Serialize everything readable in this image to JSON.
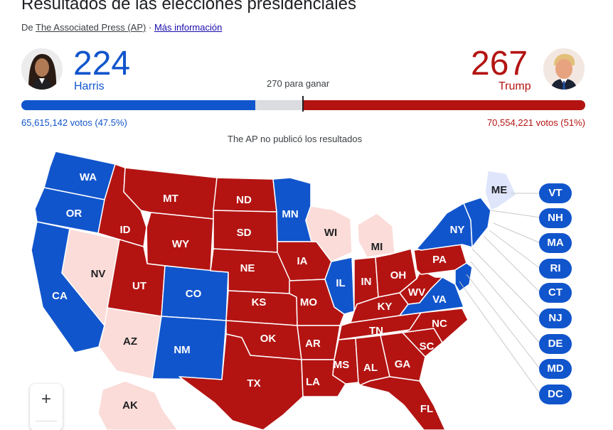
{
  "header": {
    "title": "Resultados de las elecciones presidenciales",
    "source_prefix": "De",
    "source_link": "The Associated Press (AP)",
    "separator": "·",
    "more_link": "Más información"
  },
  "candidates": {
    "harris": {
      "name": "Harris",
      "electoral_votes": "224",
      "popular_votes": "65,615,142 votos (47.5%)",
      "color": "#1155cc",
      "avatar_icon": "harris-portrait"
    },
    "trump": {
      "name": "Trump",
      "electoral_votes": "267",
      "popular_votes": "70,554,221 votos (51%)",
      "color": "#b31412",
      "avatar_icon": "trump-portrait"
    }
  },
  "to_win": "270 para ganar",
  "note": "The AP no publicó los resultados",
  "colors": {
    "dem": "#1155cc",
    "rep": "#b31412",
    "lean_dem": "#dfe6fb",
    "lean_rep": "#fbdcd8"
  },
  "map": {
    "states": [
      {
        "code": "WA",
        "status": "dem"
      },
      {
        "code": "OR",
        "status": "dem"
      },
      {
        "code": "CA",
        "status": "dem"
      },
      {
        "code": "NV",
        "status": "lean_rep"
      },
      {
        "code": "AZ",
        "status": "lean_rep"
      },
      {
        "code": "ID",
        "status": "rep"
      },
      {
        "code": "MT",
        "status": "rep"
      },
      {
        "code": "WY",
        "status": "rep"
      },
      {
        "code": "UT",
        "status": "rep"
      },
      {
        "code": "CO",
        "status": "dem"
      },
      {
        "code": "NM",
        "status": "dem"
      },
      {
        "code": "ND",
        "status": "rep"
      },
      {
        "code": "SD",
        "status": "rep"
      },
      {
        "code": "NE",
        "status": "rep"
      },
      {
        "code": "KS",
        "status": "rep"
      },
      {
        "code": "OK",
        "status": "rep"
      },
      {
        "code": "TX",
        "status": "rep"
      },
      {
        "code": "MN",
        "status": "dem"
      },
      {
        "code": "IA",
        "status": "rep"
      },
      {
        "code": "MO",
        "status": "rep"
      },
      {
        "code": "AR",
        "status": "rep"
      },
      {
        "code": "LA",
        "status": "rep"
      },
      {
        "code": "WI",
        "status": "lean_rep"
      },
      {
        "code": "IL",
        "status": "dem"
      },
      {
        "code": "MI",
        "status": "lean_rep"
      },
      {
        "code": "IN",
        "status": "rep"
      },
      {
        "code": "OH",
        "status": "rep"
      },
      {
        "code": "KY",
        "status": "rep"
      },
      {
        "code": "TN",
        "status": "rep"
      },
      {
        "code": "MS",
        "status": "rep"
      },
      {
        "code": "AL",
        "status": "rep"
      },
      {
        "code": "GA",
        "status": "rep"
      },
      {
        "code": "FL",
        "status": "rep"
      },
      {
        "code": "SC",
        "status": "rep"
      },
      {
        "code": "NC",
        "status": "rep"
      },
      {
        "code": "VA",
        "status": "dem"
      },
      {
        "code": "WV",
        "status": "rep"
      },
      {
        "code": "PA",
        "status": "rep"
      },
      {
        "code": "NY",
        "status": "dem"
      },
      {
        "code": "ME",
        "status": "lean_dem"
      },
      {
        "code": "AK",
        "status": "lean_rep"
      }
    ],
    "northeast_pills": [
      "VT",
      "NH",
      "MA",
      "RI",
      "CT",
      "NJ",
      "DE",
      "MD",
      "DC"
    ],
    "zoom_in": "+"
  }
}
